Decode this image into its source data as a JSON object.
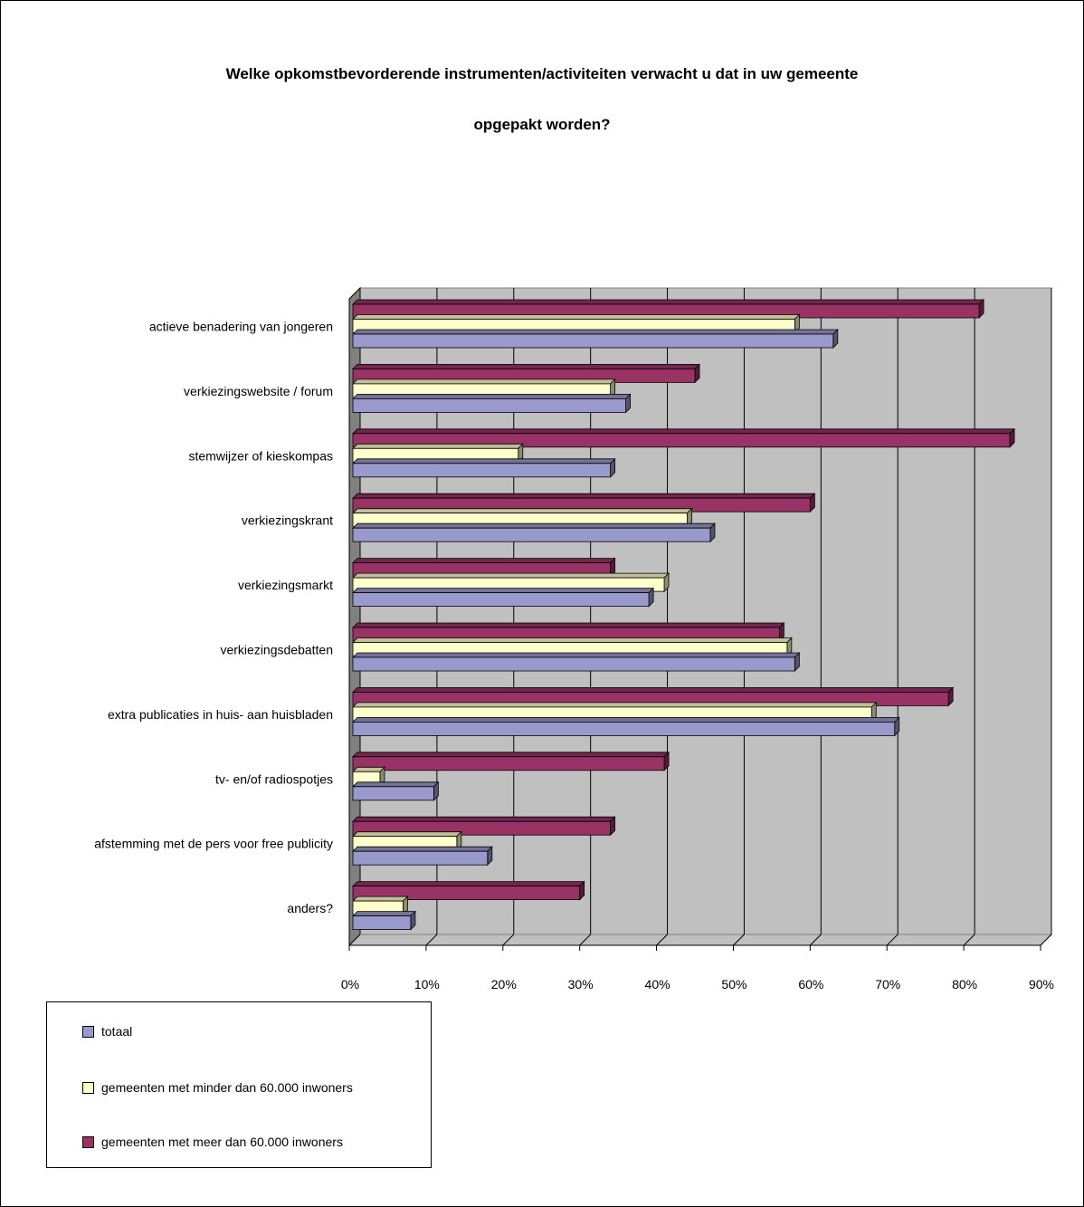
{
  "chart_data": {
    "type": "bar",
    "orientation": "horizontal",
    "title_lines": [
      "Welke opkomstbevorderende instrumenten/activiteiten verwacht u dat in uw gemeente",
      "opgepakt worden?"
    ],
    "categories": [
      "actieve benadering van jongeren",
      "verkiezingswebsite / forum",
      "stemwijzer of kieskompas",
      "verkiezingskrant",
      "verkiezingsmarkt",
      "verkiezingsdebatten",
      "extra publicaties in huis- aan huisbladen",
      "tv- en/of radiospotjes",
      "afstemming met de pers voor free publicity",
      "anders?"
    ],
    "series": [
      {
        "name": "totaal",
        "color": "#9999cc",
        "values": [
          63,
          36,
          34,
          47,
          39,
          58,
          71,
          11,
          18,
          8
        ]
      },
      {
        "name": "gemeenten met minder dan 60.000 inwoners",
        "color": "#ffffcc",
        "values": [
          58,
          34,
          22,
          44,
          41,
          57,
          68,
          4,
          14,
          7
        ]
      },
      {
        "name": "gemeenten met meer dan 60.000 inwoners",
        "color": "#993366",
        "values": [
          82,
          45,
          86,
          60,
          34,
          56,
          78,
          41,
          34,
          30
        ]
      }
    ],
    "xlim": [
      0,
      90
    ],
    "x_ticks": [
      "0%",
      "10%",
      "20%",
      "30%",
      "40%",
      "50%",
      "60%",
      "70%",
      "80%",
      "90%"
    ],
    "grid": true,
    "legend_position": "bottom-left"
  }
}
